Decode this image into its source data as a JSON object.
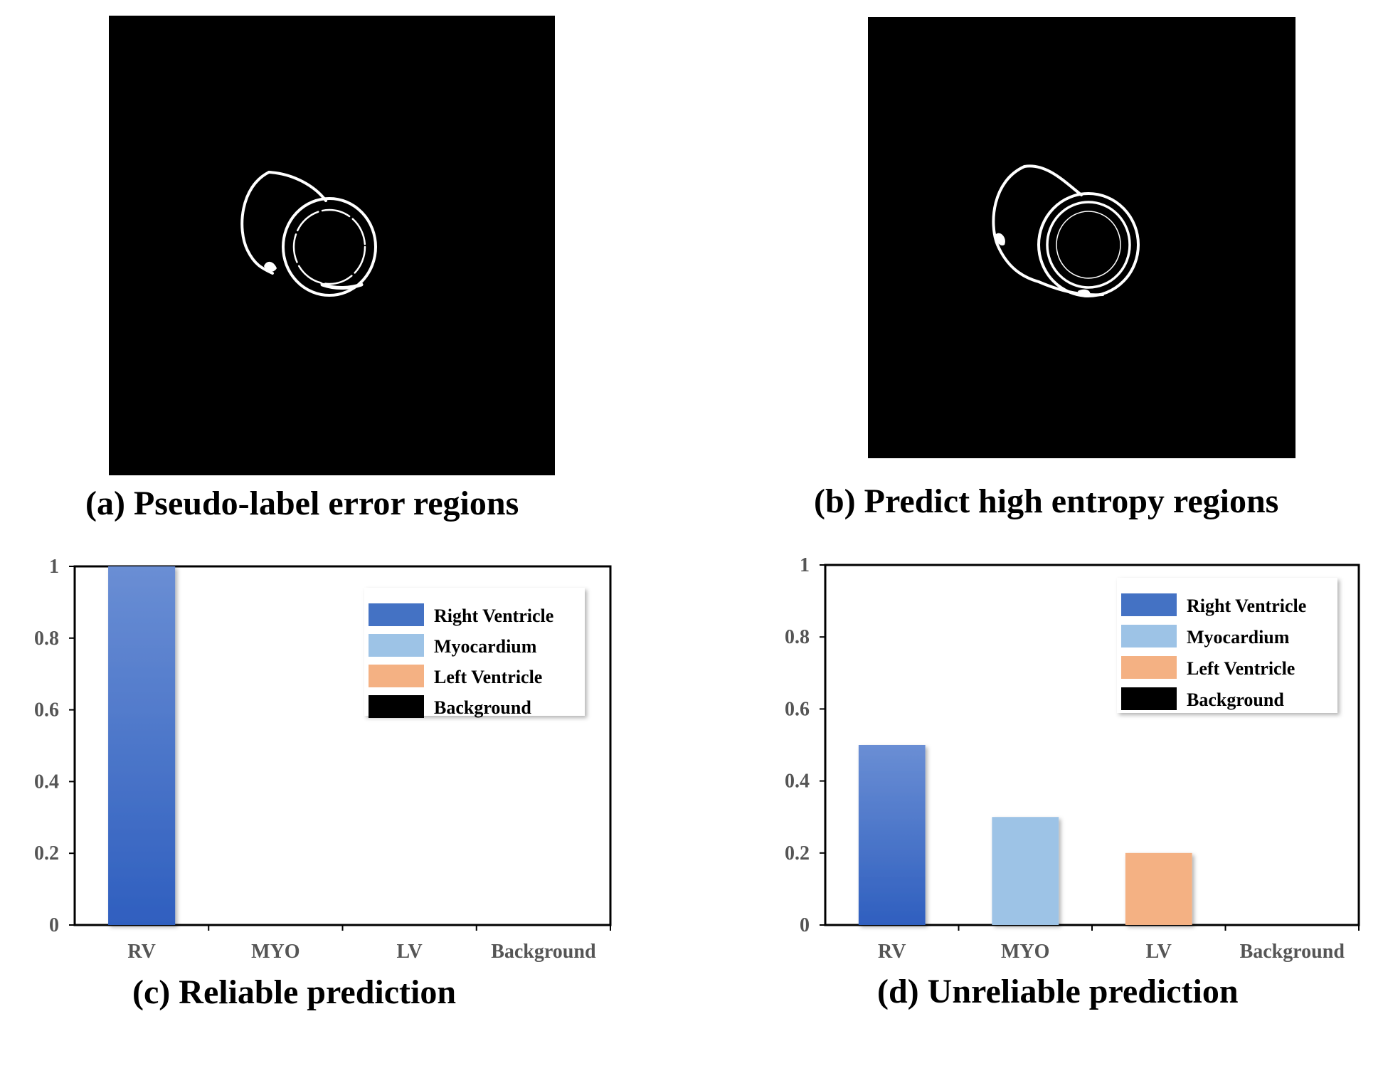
{
  "captions": {
    "a": "(a) Pseudo-label error regions",
    "b": "(b) Predict high entropy regions",
    "c": "(c) Reliable prediction",
    "d": "(d) Unreliable prediction"
  },
  "colors": {
    "right_ventricle": "#4472c4",
    "myocardium": "#9dc3e6",
    "left_ventricle": "#f4b183",
    "background": "#000000"
  },
  "chart_data": [
    {
      "type": "bar",
      "categories": [
        "RV",
        "MYO",
        "LV",
        "Background"
      ],
      "values": [
        1.0,
        0,
        0,
        0
      ],
      "ylim": [
        0,
        1
      ],
      "yticks": [
        "0",
        "0.2",
        "0.4",
        "0.6",
        "0.8",
        "1"
      ],
      "legend": [
        "Right Ventricle",
        "Myocardium",
        "Left Ventricle",
        "Background"
      ],
      "legend_position": "top-right",
      "grid": false
    },
    {
      "type": "bar",
      "categories": [
        "RV",
        "MYO",
        "LV",
        "Background"
      ],
      "values": [
        0.5,
        0.3,
        0.2,
        0
      ],
      "ylim": [
        0,
        1
      ],
      "yticks": [
        "0",
        "0.2",
        "0.4",
        "0.6",
        "0.8",
        "1"
      ],
      "legend": [
        "Right Ventricle",
        "Myocardium",
        "Left Ventricle",
        "Background"
      ],
      "legend_position": "top-right",
      "grid": false
    }
  ]
}
